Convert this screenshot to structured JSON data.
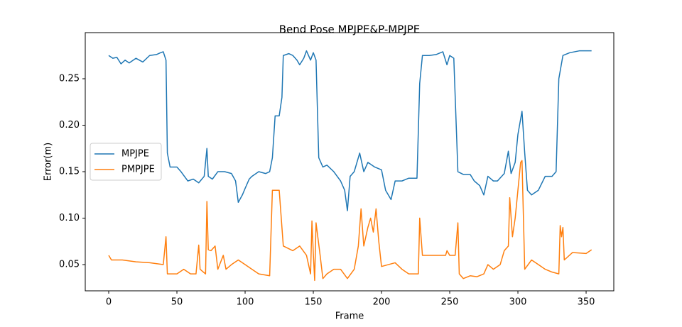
{
  "chart_data": {
    "type": "line",
    "title": "Bend Pose MPJPE&P-MPJPE",
    "xlabel": "Frame",
    "ylabel": "Error(m)",
    "xlim": [
      -17.2,
      370.3
    ],
    "ylim": [
      0.0218,
      0.2996
    ],
    "xticks": [
      0,
      50,
      100,
      150,
      200,
      250,
      300,
      350
    ],
    "yticks": [
      0.05,
      {
        "value": 0.1,
        "label": "0.10"
      },
      0.15,
      {
        "value": 0.2,
        "label": "0.20"
      },
      0.25
    ],
    "legend": "center left",
    "series": [
      {
        "name": "MPJPE",
        "color": "#1f77b4",
        "x": [
          0,
          3,
          6,
          9,
          12,
          15,
          20,
          25,
          30,
          35,
          38,
          40,
          42,
          43,
          45,
          50,
          53,
          55,
          58,
          62,
          66,
          70,
          72,
          73,
          76,
          80,
          85,
          90,
          93,
          95,
          98,
          100,
          103,
          105,
          110,
          115,
          118,
          120,
          122,
          125,
          127,
          128,
          132,
          135,
          138,
          140,
          143,
          145,
          148,
          150,
          152,
          154,
          157,
          160,
          165,
          170,
          173,
          175,
          177,
          180,
          184,
          187,
          190,
          195,
          200,
          203,
          207,
          210,
          215,
          220,
          226,
          228,
          230,
          235,
          240,
          245,
          248,
          250,
          253,
          256,
          260,
          265,
          268,
          272,
          275,
          278,
          282,
          285,
          290,
          293,
          295,
          298,
          300,
          303,
          305,
          307,
          310,
          315,
          320,
          325,
          328,
          330,
          333,
          338,
          345,
          354
        ],
        "values": [
          0.275,
          0.272,
          0.273,
          0.266,
          0.27,
          0.267,
          0.272,
          0.268,
          0.275,
          0.276,
          0.278,
          0.279,
          0.27,
          0.17,
          0.155,
          0.155,
          0.15,
          0.146,
          0.14,
          0.142,
          0.138,
          0.145,
          0.175,
          0.145,
          0.142,
          0.15,
          0.15,
          0.148,
          0.14,
          0.117,
          0.125,
          0.132,
          0.142,
          0.145,
          0.15,
          0.148,
          0.15,
          0.165,
          0.21,
          0.21,
          0.23,
          0.275,
          0.277,
          0.275,
          0.27,
          0.265,
          0.272,
          0.28,
          0.27,
          0.278,
          0.27,
          0.165,
          0.155,
          0.157,
          0.15,
          0.14,
          0.13,
          0.108,
          0.145,
          0.15,
          0.17,
          0.15,
          0.16,
          0.155,
          0.152,
          0.13,
          0.12,
          0.14,
          0.14,
          0.143,
          0.143,
          0.245,
          0.275,
          0.275,
          0.276,
          0.279,
          0.265,
          0.275,
          0.272,
          0.15,
          0.147,
          0.147,
          0.14,
          0.135,
          0.125,
          0.145,
          0.14,
          0.14,
          0.148,
          0.172,
          0.148,
          0.16,
          0.19,
          0.215,
          0.17,
          0.13,
          0.125,
          0.13,
          0.145,
          0.145,
          0.15,
          0.25,
          0.275,
          0.278,
          0.28,
          0.28
        ]
      },
      {
        "name": "PMPJPE",
        "color": "#ff7f0e",
        "x": [
          0,
          2,
          10,
          20,
          30,
          40,
          42,
          43,
          50,
          55,
          60,
          64,
          66,
          67,
          71,
          72,
          73,
          75,
          78,
          80,
          84,
          86,
          90,
          95,
          100,
          105,
          110,
          118,
          120,
          125,
          128,
          135,
          140,
          145,
          148,
          149,
          150,
          151,
          152,
          155,
          157,
          160,
          165,
          170,
          175,
          180,
          183,
          185,
          187,
          190,
          192,
          194,
          196,
          198,
          200,
          205,
          210,
          215,
          220,
          227,
          228,
          230,
          240,
          247,
          248,
          250,
          254,
          256,
          257,
          260,
          265,
          270,
          275,
          278,
          282,
          287,
          290,
          293,
          294,
          296,
          298,
          300,
          302,
          303,
          305,
          310,
          315,
          320,
          325,
          330,
          331,
          332,
          333,
          334,
          340,
          350,
          354
        ],
        "values": [
          0.06,
          0.055,
          0.055,
          0.053,
          0.052,
          0.05,
          0.08,
          0.04,
          0.04,
          0.045,
          0.04,
          0.04,
          0.071,
          0.045,
          0.04,
          0.118,
          0.066,
          0.065,
          0.07,
          0.045,
          0.06,
          0.045,
          0.05,
          0.055,
          0.05,
          0.045,
          0.04,
          0.038,
          0.13,
          0.13,
          0.07,
          0.065,
          0.07,
          0.06,
          0.04,
          0.097,
          0.062,
          0.033,
          0.095,
          0.06,
          0.035,
          0.04,
          0.045,
          0.045,
          0.035,
          0.045,
          0.07,
          0.11,
          0.07,
          0.09,
          0.1,
          0.085,
          0.11,
          0.075,
          0.048,
          0.05,
          0.052,
          0.045,
          0.04,
          0.04,
          0.1,
          0.06,
          0.06,
          0.06,
          0.065,
          0.06,
          0.06,
          0.095,
          0.04,
          0.035,
          0.038,
          0.037,
          0.04,
          0.05,
          0.045,
          0.05,
          0.065,
          0.07,
          0.122,
          0.08,
          0.1,
          0.13,
          0.16,
          0.162,
          0.045,
          0.055,
          0.05,
          0.045,
          0.042,
          0.04,
          0.092,
          0.08,
          0.09,
          0.055,
          0.063,
          0.062,
          0.066
        ]
      }
    ]
  }
}
